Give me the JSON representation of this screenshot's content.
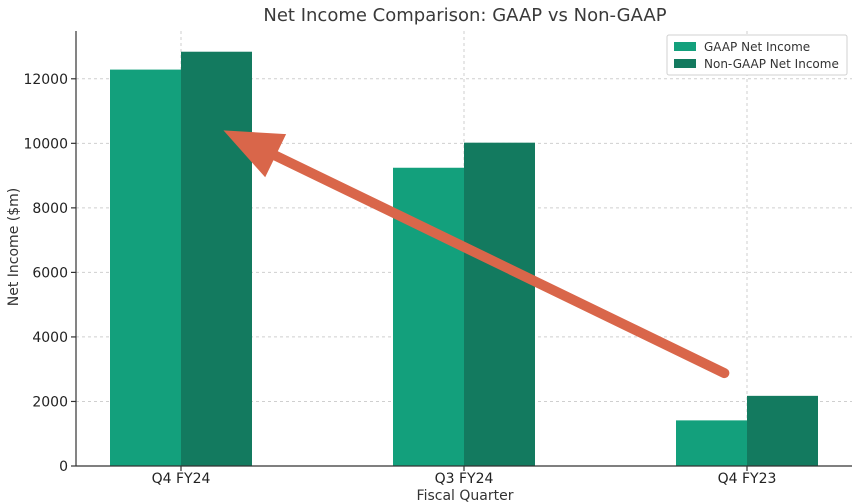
{
  "chart_data": {
    "type": "bar",
    "title": "Net Income Comparison: GAAP vs Non-GAAP",
    "xlabel": "Fiscal Quarter",
    "ylabel": "Net Income ($m)",
    "categories": [
      "Q4 FY24",
      "Q3 FY24",
      "Q4 FY23"
    ],
    "series": [
      {
        "name": "GAAP Net Income",
        "color": "#13a07c",
        "values": [
          12285,
          9243,
          1414
        ]
      },
      {
        "name": "Non-GAAP Net Income",
        "color": "#137a5f",
        "values": [
          12839,
          10020,
          2174
        ]
      }
    ],
    "yticks": [
      0,
      2000,
      4000,
      6000,
      8000,
      10000,
      12000
    ],
    "ytick_labels": [
      "0",
      "2000",
      "4000",
      "6000",
      "8000",
      "10000",
      "12000"
    ],
    "ylim": [
      0,
      13481
    ],
    "grid": true,
    "legend_position": "top-right",
    "annotation": {
      "type": "arrow",
      "color": "#d9664a",
      "from": {
        "category": "Q4 FY23",
        "offset": -0.08,
        "y": 2880
      },
      "to": {
        "category": "Q4 FY24",
        "offset": 0.15,
        "y": 10400
      },
      "description": "trend arrow from Q4 FY23 to Q4 FY24"
    }
  }
}
